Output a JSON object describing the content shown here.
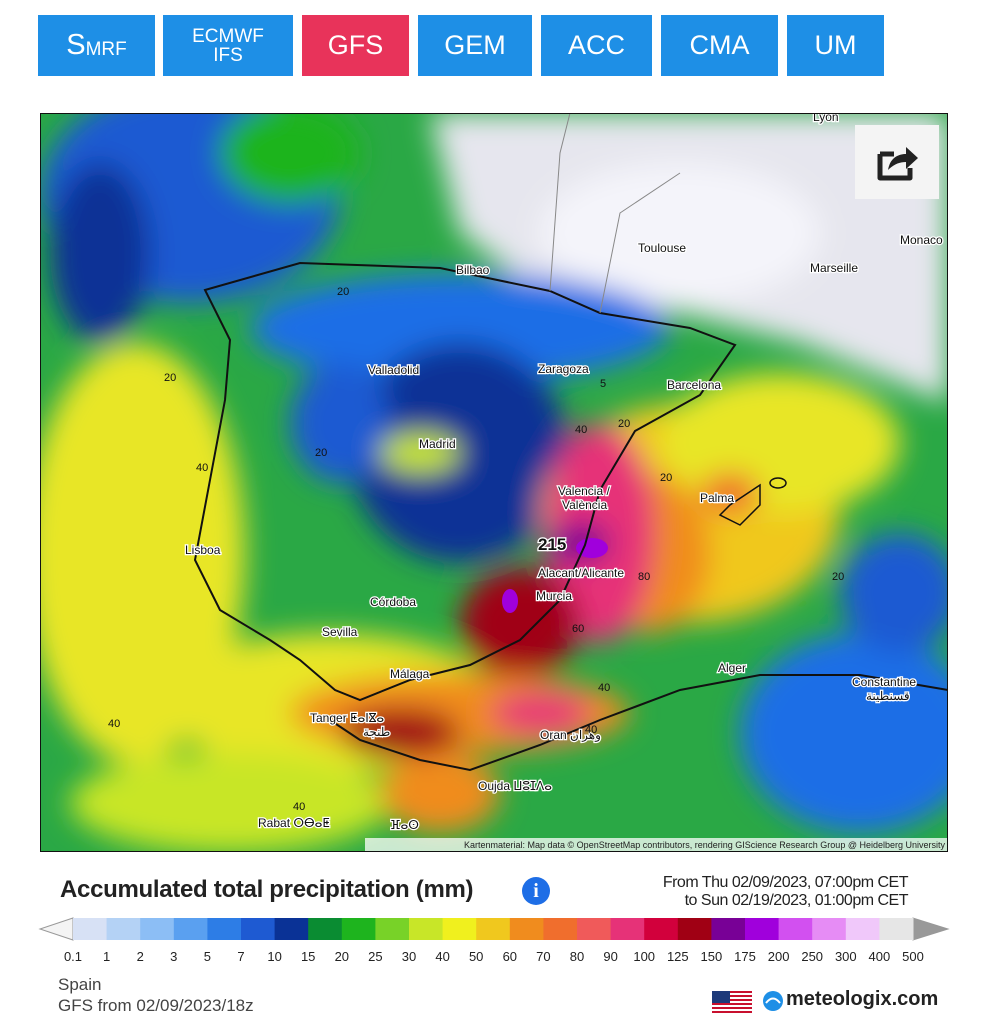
{
  "tabs": [
    {
      "text": "S",
      "small": "MRF"
    },
    {
      "text": "ECMWF",
      "small": "IFS"
    },
    {
      "text": "GFS"
    },
    {
      "text": "GEM"
    },
    {
      "text": "ACC"
    },
    {
      "text": "CMA"
    },
    {
      "text": "UM"
    }
  ],
  "map": {
    "places": [
      "Lyon",
      "Toulouse",
      "Monaco",
      "Bilbao",
      "Marseille",
      "Valladolid",
      "Zaragoza",
      "Barcelona",
      "Madrid",
      "Valencia /",
      "València",
      "Palma",
      "Lisboa",
      "Alacant/Alicante",
      "Murcia",
      "Córdoba",
      "Sevilla",
      "Málaga",
      "Alger",
      "Constantine",
      "قسنطينة",
      "Tanger ⵟⴰⵏⴵⴰ",
      "طنجة",
      "Oran وهران",
      "Oujda ⵡⵓⵊⴷⴰ",
      "Rabat ⵔⴱⴰⵟ",
      "ⴼⴰⵙ"
    ],
    "max_label": "215",
    "contour_labels": [
      "20",
      "20",
      "40",
      "20",
      "40",
      "5",
      "20",
      "40",
      "20",
      "80",
      "60",
      "40",
      "40",
      "20",
      "40"
    ],
    "attribution": "Kartenmaterial: Map data © OpenStreetMap contributors, rendering GIScience Research Group @ Heidelberg University"
  },
  "title": "Accumulated total precipitation (mm)",
  "period_from": "From Thu 02/09/2023, 07:00pm CET",
  "period_to": "to Sun 02/19/2023, 01:00pm CET",
  "legend": {
    "labels": [
      "0.1",
      "1",
      "2",
      "3",
      "5",
      "7",
      "10",
      "15",
      "20",
      "25",
      "30",
      "40",
      "50",
      "60",
      "70",
      "80",
      "90",
      "100",
      "125",
      "150",
      "175",
      "200",
      "250",
      "300",
      "400",
      "500"
    ],
    "colors": [
      "#d7e1f5",
      "#b4d2f5",
      "#8cbef5",
      "#5aa0f0",
      "#2d7de6",
      "#1e5ad2",
      "#0a3296",
      "#0a8c32",
      "#1eb41e",
      "#78d228",
      "#c8e628",
      "#f0f01e",
      "#f0c81e",
      "#f08c1e",
      "#f06e2d",
      "#f05a5a",
      "#e63278",
      "#d2003c",
      "#a00014",
      "#780096",
      "#a000dc",
      "#d250f0",
      "#e68cf5",
      "#f0c8fa",
      "#e6e6e6"
    ]
  },
  "region": "Spain",
  "run": "GFS from 02/09/2023/18z",
  "brand": "meteologix.com"
}
